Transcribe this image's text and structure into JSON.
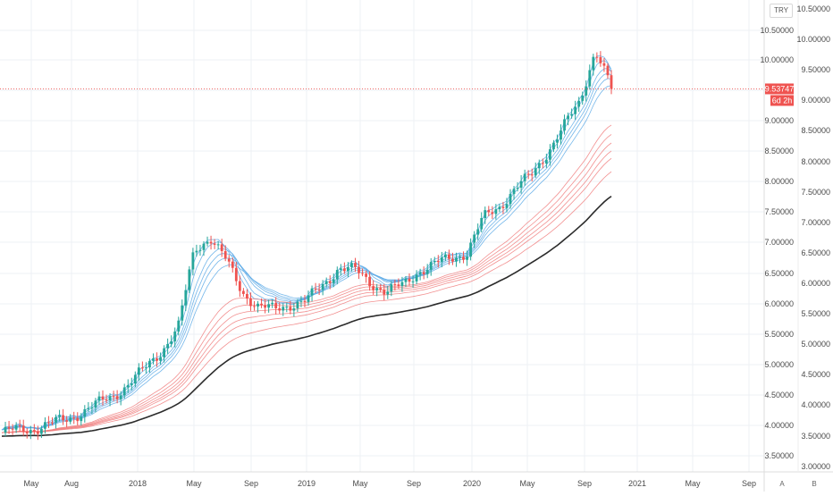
{
  "currency": "TRY",
  "controls": {
    "auto_label": "A",
    "log_label": "B"
  },
  "price_badge": {
    "value": "9.53747",
    "countdown": "6d 2h",
    "color": "#ef5350"
  },
  "colors": {
    "up_candle": "#26a69a",
    "down_candle": "#ef5350",
    "fast_ribbon": "#5aa9e6",
    "slow_ribbon": "#f07c7c",
    "base_ma": "#2b2b2b",
    "grid": "#eef0f4"
  },
  "chart_data": {
    "type": "candlestick",
    "title": "",
    "x_ticks": [
      "May",
      "Aug",
      "2018",
      "May",
      "Sep",
      "2019",
      "May",
      "Sep",
      "2020",
      "May",
      "Sep",
      "2021",
      "May",
      "Sep"
    ],
    "y_left_ticks": [
      "10.50000",
      "10.00000",
      "9.50000",
      "9.00000",
      "8.50000",
      "8.00000",
      "7.50000",
      "7.00000",
      "6.50000",
      "6.00000",
      "5.50000",
      "5.00000",
      "4.50000",
      "4.00000",
      "3.50000"
    ],
    "y_right_ticks": [
      "10.50000",
      "10.00000",
      "9.50000",
      "9.00000",
      "8.50000",
      "8.00000",
      "7.50000",
      "7.00000",
      "6.50000",
      "6.00000",
      "5.50000",
      "5.00000",
      "4.50000",
      "4.00000",
      "3.50000",
      "3.00000"
    ],
    "last_price": 9.53747,
    "grid": true,
    "series": [
      {
        "name": "",
        "kind": "weekly-close-path",
        "values": [
          3.88,
          3.92,
          3.95,
          4.02,
          4.1,
          4.22,
          4.35,
          4.5,
          4.7,
          4.95,
          5.25,
          5.6,
          6.9,
          7.1,
          6.7,
          6.2,
          5.95,
          5.9,
          6.0,
          6.05,
          6.3,
          6.6,
          6.55,
          6.35,
          6.2,
          6.3,
          6.55,
          6.65,
          6.75,
          6.85,
          7.4,
          7.6,
          7.9,
          8.1,
          8.5,
          8.9,
          9.3,
          10.2,
          9.53747
        ]
      }
    ]
  }
}
